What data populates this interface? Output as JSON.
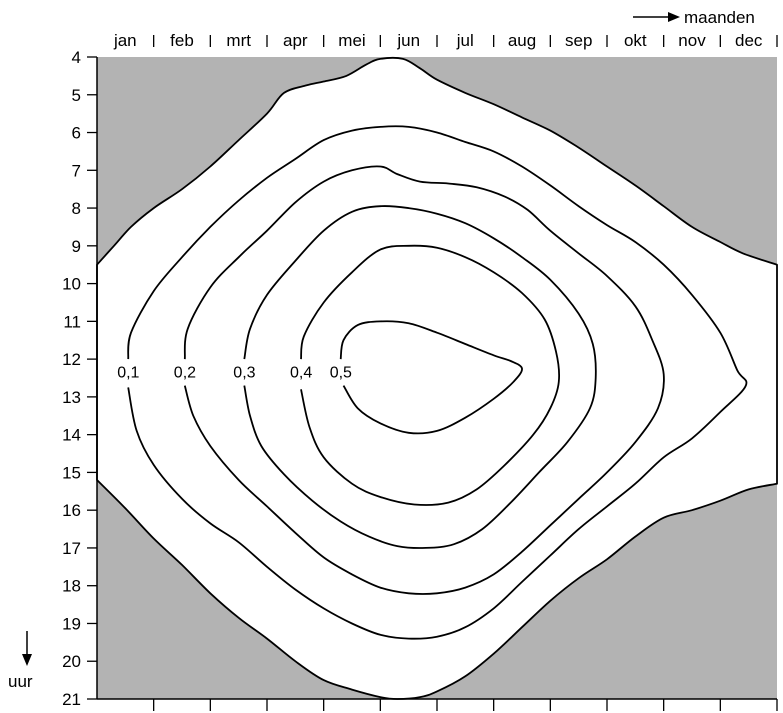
{
  "chart_data": {
    "type": "contour",
    "x_axis": {
      "label": "maanden",
      "categories": [
        "jan",
        "feb",
        "mrt",
        "apr",
        "mei",
        "jun",
        "jul",
        "aug",
        "sep",
        "okt",
        "nov",
        "dec"
      ]
    },
    "y_axis": {
      "label": "uur",
      "range": [
        4,
        21
      ],
      "ticks": [
        4,
        5,
        6,
        7,
        8,
        9,
        10,
        11,
        12,
        13,
        14,
        15,
        16,
        17,
        18,
        19,
        20,
        21
      ]
    },
    "night_color": "#b3b3b3",
    "day_color": "#ffffff",
    "daylight_boundary": [
      {
        "m": 0,
        "h": 9.5
      },
      {
        "m": 0.3,
        "h": 9.0
      },
      {
        "m": 0.6,
        "h": 8.5
      },
      {
        "m": 1.0,
        "h": 8.0
      },
      {
        "m": 1.5,
        "h": 7.5
      },
      {
        "m": 2.0,
        "h": 6.9
      },
      {
        "m": 2.5,
        "h": 6.2
      },
      {
        "m": 3.0,
        "h": 5.5
      },
      {
        "m": 3.3,
        "h": 4.95
      },
      {
        "m": 3.7,
        "h": 4.75
      },
      {
        "m": 4.0,
        "h": 4.65
      },
      {
        "m": 4.4,
        "h": 4.5
      },
      {
        "m": 4.75,
        "h": 4.2
      },
      {
        "m": 5.0,
        "h": 4.05
      },
      {
        "m": 5.4,
        "h": 4.05
      },
      {
        "m": 5.7,
        "h": 4.3
      },
      {
        "m": 6.0,
        "h": 4.6
      },
      {
        "m": 6.5,
        "h": 4.95
      },
      {
        "m": 7.0,
        "h": 5.25
      },
      {
        "m": 7.5,
        "h": 5.6
      },
      {
        "m": 8.0,
        "h": 5.95
      },
      {
        "m": 8.5,
        "h": 6.4
      },
      {
        "m": 9.0,
        "h": 6.9
      },
      {
        "m": 9.5,
        "h": 7.4
      },
      {
        "m": 10.0,
        "h": 7.95
      },
      {
        "m": 10.5,
        "h": 8.5
      },
      {
        "m": 11.0,
        "h": 8.9
      },
      {
        "m": 11.4,
        "h": 9.2
      },
      {
        "m": 12.0,
        "h": 9.5
      },
      {
        "m": 12.0,
        "h": 15.3
      },
      {
        "m": 11.5,
        "h": 15.45
      },
      {
        "m": 11.0,
        "h": 15.75
      },
      {
        "m": 10.5,
        "h": 16.0
      },
      {
        "m": 10.0,
        "h": 16.2
      },
      {
        "m": 9.5,
        "h": 16.7
      },
      {
        "m": 9.0,
        "h": 17.3
      },
      {
        "m": 8.5,
        "h": 17.8
      },
      {
        "m": 8.0,
        "h": 18.4
      },
      {
        "m": 7.5,
        "h": 19.1
      },
      {
        "m": 7.0,
        "h": 19.8
      },
      {
        "m": 6.5,
        "h": 20.4
      },
      {
        "m": 6.0,
        "h": 20.8
      },
      {
        "m": 5.7,
        "h": 20.95
      },
      {
        "m": 5.3,
        "h": 21.0
      },
      {
        "m": 5.0,
        "h": 20.95
      },
      {
        "m": 4.5,
        "h": 20.75
      },
      {
        "m": 4.0,
        "h": 20.5
      },
      {
        "m": 3.5,
        "h": 20.0
      },
      {
        "m": 3.0,
        "h": 19.4
      },
      {
        "m": 2.5,
        "h": 18.85
      },
      {
        "m": 2.0,
        "h": 18.2
      },
      {
        "m": 1.5,
        "h": 17.45
      },
      {
        "m": 1.0,
        "h": 16.75
      },
      {
        "m": 0.5,
        "h": 15.95
      },
      {
        "m": 0,
        "h": 15.2
      }
    ],
    "contours": [
      {
        "level": "0,1",
        "points": [
          {
            "m": 0.55,
            "h": 12.0
          },
          {
            "m": 0.6,
            "h": 11.3
          },
          {
            "m": 1.0,
            "h": 10.2
          },
          {
            "m": 1.5,
            "h": 9.3
          },
          {
            "m": 2.0,
            "h": 8.5
          },
          {
            "m": 2.5,
            "h": 7.8
          },
          {
            "m": 3.0,
            "h": 7.2
          },
          {
            "m": 3.5,
            "h": 6.7
          },
          {
            "m": 4.0,
            "h": 6.2
          },
          {
            "m": 4.5,
            "h": 5.95
          },
          {
            "m": 5.0,
            "h": 5.85
          },
          {
            "m": 5.5,
            "h": 5.85
          },
          {
            "m": 6.0,
            "h": 6.0
          },
          {
            "m": 6.5,
            "h": 6.25
          },
          {
            "m": 7.0,
            "h": 6.5
          },
          {
            "m": 7.5,
            "h": 6.9
          },
          {
            "m": 8.0,
            "h": 7.4
          },
          {
            "m": 8.5,
            "h": 7.95
          },
          {
            "m": 9.0,
            "h": 8.45
          },
          {
            "m": 9.5,
            "h": 8.9
          },
          {
            "m": 10.0,
            "h": 9.5
          },
          {
            "m": 10.5,
            "h": 10.3
          },
          {
            "m": 11.0,
            "h": 11.3
          },
          {
            "m": 11.3,
            "h": 12.3
          },
          {
            "m": 11.45,
            "h": 12.7
          },
          {
            "m": 11.0,
            "h": 13.4
          },
          {
            "m": 10.5,
            "h": 14.1
          },
          {
            "m": 10.0,
            "h": 14.6
          },
          {
            "m": 9.5,
            "h": 15.3
          },
          {
            "m": 9.0,
            "h": 15.9
          },
          {
            "m": 8.5,
            "h": 16.5
          },
          {
            "m": 8.0,
            "h": 17.2
          },
          {
            "m": 7.5,
            "h": 17.9
          },
          {
            "m": 7.0,
            "h": 18.6
          },
          {
            "m": 6.5,
            "h": 19.1
          },
          {
            "m": 6.0,
            "h": 19.35
          },
          {
            "m": 5.5,
            "h": 19.4
          },
          {
            "m": 5.0,
            "h": 19.3
          },
          {
            "m": 4.5,
            "h": 19.0
          },
          {
            "m": 4.0,
            "h": 18.6
          },
          {
            "m": 3.5,
            "h": 18.1
          },
          {
            "m": 3.0,
            "h": 17.5
          },
          {
            "m": 2.5,
            "h": 16.85
          },
          {
            "m": 2.0,
            "h": 16.35
          },
          {
            "m": 1.5,
            "h": 15.7
          },
          {
            "m": 1.0,
            "h": 14.8
          },
          {
            "m": 0.7,
            "h": 13.9
          },
          {
            "m": 0.55,
            "h": 12.75
          }
        ]
      },
      {
        "level": "0,2",
        "points": [
          {
            "m": 1.55,
            "h": 12.0
          },
          {
            "m": 1.6,
            "h": 11.2
          },
          {
            "m": 2.0,
            "h": 10.1
          },
          {
            "m": 2.5,
            "h": 9.3
          },
          {
            "m": 3.0,
            "h": 8.6
          },
          {
            "m": 3.5,
            "h": 7.85
          },
          {
            "m": 4.0,
            "h": 7.3
          },
          {
            "m": 4.5,
            "h": 7.0
          },
          {
            "m": 5.0,
            "h": 6.9
          },
          {
            "m": 5.3,
            "h": 7.1
          },
          {
            "m": 5.7,
            "h": 7.3
          },
          {
            "m": 6.2,
            "h": 7.35
          },
          {
            "m": 6.7,
            "h": 7.45
          },
          {
            "m": 7.2,
            "h": 7.7
          },
          {
            "m": 7.6,
            "h": 8.05
          },
          {
            "m": 8.0,
            "h": 8.6
          },
          {
            "m": 8.5,
            "h": 9.2
          },
          {
            "m": 9.0,
            "h": 9.8
          },
          {
            "m": 9.5,
            "h": 10.6
          },
          {
            "m": 9.8,
            "h": 11.5
          },
          {
            "m": 10.0,
            "h": 12.4
          },
          {
            "m": 9.9,
            "h": 13.3
          },
          {
            "m": 9.5,
            "h": 14.2
          },
          {
            "m": 9.0,
            "h": 15.0
          },
          {
            "m": 8.5,
            "h": 15.7
          },
          {
            "m": 8.0,
            "h": 16.4
          },
          {
            "m": 7.5,
            "h": 17.1
          },
          {
            "m": 7.0,
            "h": 17.7
          },
          {
            "m": 6.5,
            "h": 18.05
          },
          {
            "m": 6.0,
            "h": 18.2
          },
          {
            "m": 5.5,
            "h": 18.2
          },
          {
            "m": 5.0,
            "h": 18.05
          },
          {
            "m": 4.5,
            "h": 17.7
          },
          {
            "m": 4.0,
            "h": 17.25
          },
          {
            "m": 3.5,
            "h": 16.6
          },
          {
            "m": 3.0,
            "h": 15.9
          },
          {
            "m": 2.5,
            "h": 15.2
          },
          {
            "m": 2.0,
            "h": 14.3
          },
          {
            "m": 1.7,
            "h": 13.5
          },
          {
            "m": 1.55,
            "h": 12.7
          }
        ]
      },
      {
        "level": "0,3",
        "points": [
          {
            "m": 2.6,
            "h": 12.0
          },
          {
            "m": 2.7,
            "h": 11.2
          },
          {
            "m": 3.0,
            "h": 10.3
          },
          {
            "m": 3.5,
            "h": 9.4
          },
          {
            "m": 4.0,
            "h": 8.6
          },
          {
            "m": 4.5,
            "h": 8.1
          },
          {
            "m": 5.0,
            "h": 7.95
          },
          {
            "m": 5.5,
            "h": 8.0
          },
          {
            "m": 6.0,
            "h": 8.15
          },
          {
            "m": 6.5,
            "h": 8.4
          },
          {
            "m": 7.0,
            "h": 8.8
          },
          {
            "m": 7.5,
            "h": 9.3
          },
          {
            "m": 8.0,
            "h": 9.9
          },
          {
            "m": 8.5,
            "h": 10.8
          },
          {
            "m": 8.75,
            "h": 11.6
          },
          {
            "m": 8.8,
            "h": 12.5
          },
          {
            "m": 8.7,
            "h": 13.3
          },
          {
            "m": 8.3,
            "h": 14.2
          },
          {
            "m": 7.8,
            "h": 15.0
          },
          {
            "m": 7.3,
            "h": 15.8
          },
          {
            "m": 6.8,
            "h": 16.5
          },
          {
            "m": 6.3,
            "h": 16.9
          },
          {
            "m": 5.8,
            "h": 17.0
          },
          {
            "m": 5.3,
            "h": 16.95
          },
          {
            "m": 4.8,
            "h": 16.7
          },
          {
            "m": 4.3,
            "h": 16.3
          },
          {
            "m": 3.8,
            "h": 15.75
          },
          {
            "m": 3.3,
            "h": 15.05
          },
          {
            "m": 2.9,
            "h": 14.3
          },
          {
            "m": 2.7,
            "h": 13.5
          },
          {
            "m": 2.6,
            "h": 12.7
          }
        ]
      },
      {
        "level": "0,4",
        "points": [
          {
            "m": 3.6,
            "h": 12.0
          },
          {
            "m": 3.65,
            "h": 11.4
          },
          {
            "m": 4.0,
            "h": 10.5
          },
          {
            "m": 4.5,
            "h": 9.7
          },
          {
            "m": 5.0,
            "h": 9.1
          },
          {
            "m": 5.5,
            "h": 9.0
          },
          {
            "m": 6.0,
            "h": 9.05
          },
          {
            "m": 6.5,
            "h": 9.3
          },
          {
            "m": 7.0,
            "h": 9.7
          },
          {
            "m": 7.5,
            "h": 10.25
          },
          {
            "m": 7.9,
            "h": 10.95
          },
          {
            "m": 8.1,
            "h": 11.8
          },
          {
            "m": 8.15,
            "h": 12.6
          },
          {
            "m": 8.0,
            "h": 13.3
          },
          {
            "m": 7.7,
            "h": 14.0
          },
          {
            "m": 7.2,
            "h": 14.8
          },
          {
            "m": 6.7,
            "h": 15.45
          },
          {
            "m": 6.2,
            "h": 15.8
          },
          {
            "m": 5.6,
            "h": 15.85
          },
          {
            "m": 5.0,
            "h": 15.65
          },
          {
            "m": 4.5,
            "h": 15.3
          },
          {
            "m": 4.0,
            "h": 14.6
          },
          {
            "m": 3.75,
            "h": 13.8
          },
          {
            "m": 3.6,
            "h": 12.8
          }
        ]
      },
      {
        "level": "0,5",
        "points": [
          {
            "m": 4.3,
            "h": 12.0
          },
          {
            "m": 4.35,
            "h": 11.5
          },
          {
            "m": 4.6,
            "h": 11.1
          },
          {
            "m": 5.0,
            "h": 11.0
          },
          {
            "m": 5.5,
            "h": 11.05
          },
          {
            "m": 6.0,
            "h": 11.3
          },
          {
            "m": 6.5,
            "h": 11.6
          },
          {
            "m": 7.0,
            "h": 11.9
          },
          {
            "m": 7.3,
            "h": 12.05
          },
          {
            "m": 7.5,
            "h": 12.25
          },
          {
            "m": 7.35,
            "h": 12.6
          },
          {
            "m": 7.0,
            "h": 13.05
          },
          {
            "m": 6.5,
            "h": 13.55
          },
          {
            "m": 6.0,
            "h": 13.9
          },
          {
            "m": 5.5,
            "h": 13.95
          },
          {
            "m": 5.0,
            "h": 13.7
          },
          {
            "m": 4.6,
            "h": 13.3
          },
          {
            "m": 4.35,
            "h": 12.7
          }
        ]
      }
    ]
  }
}
